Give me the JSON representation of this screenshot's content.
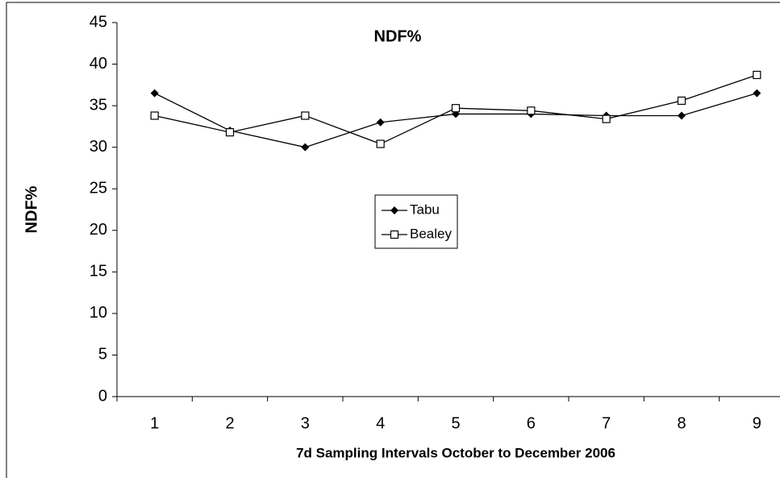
{
  "chart_data": {
    "type": "line",
    "title": "NDF%",
    "x_label": "7d Sampling Intervals October to December 2006",
    "y_label": "NDF%",
    "categories": [
      "1",
      "2",
      "3",
      "4",
      "5",
      "6",
      "7",
      "8",
      "9"
    ],
    "series": [
      {
        "name": "Tabu",
        "color": "#000000",
        "marker": "diamond",
        "values": [
          36.5,
          32,
          30,
          33,
          34,
          34,
          33.8,
          33.8,
          36.5
        ]
      },
      {
        "name": "Bealey",
        "color": "#000000",
        "marker": "square",
        "values": [
          33.8,
          31.8,
          33.8,
          30.4,
          34.7,
          34.4,
          33.4,
          35.6,
          38.7
        ]
      }
    ],
    "ylim": [
      0,
      45
    ],
    "yticks": [
      0,
      5,
      10,
      15,
      20,
      25,
      30,
      35,
      40,
      45
    ],
    "grid": false,
    "legend": "center"
  }
}
